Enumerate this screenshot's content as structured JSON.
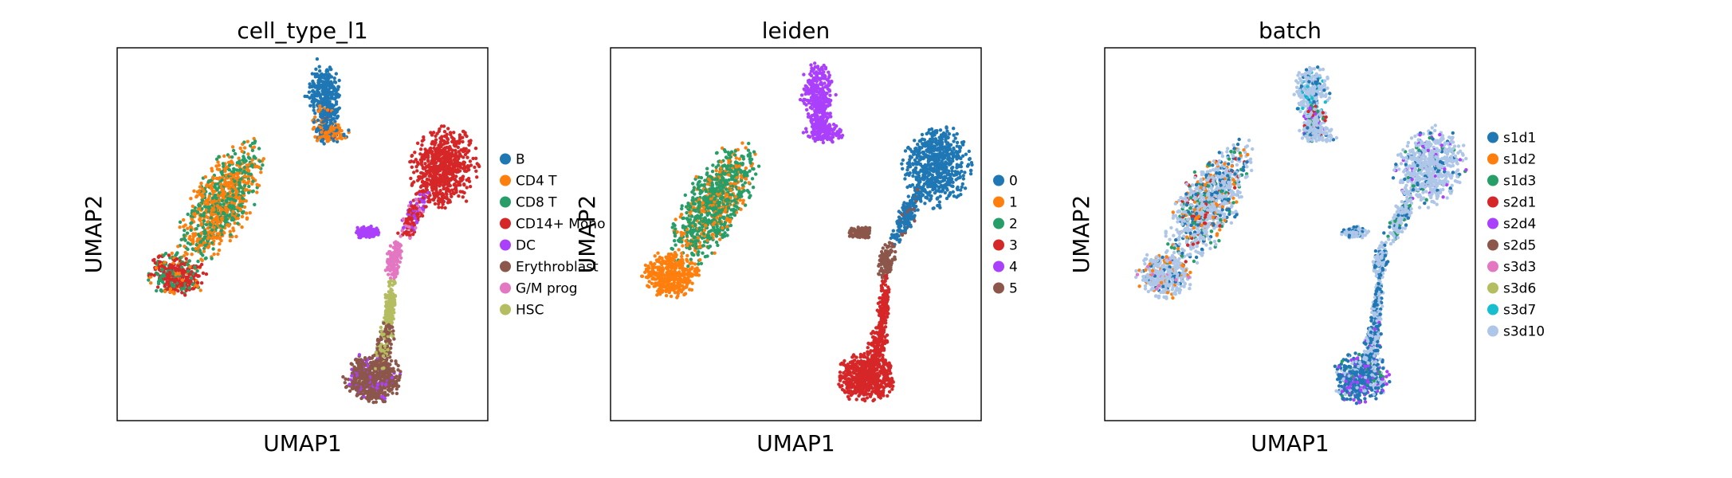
{
  "figure": {
    "background": "#ffffff"
  },
  "chart_data": [
    {
      "type": "scatter",
      "title": "cell_type_l1",
      "xlabel": "UMAP1",
      "ylabel": "UMAP2",
      "grid": false,
      "ticks": false,
      "legend_position": "right",
      "categories": [
        {
          "name": "B",
          "color": "#1f77b4"
        },
        {
          "name": "CD4 T",
          "color": "#ff7f0e"
        },
        {
          "name": "CD8 T",
          "color": "#279e68"
        },
        {
          "name": "CD14+ Mono",
          "color": "#d62728"
        },
        {
          "name": "DC",
          "color": "#aa40fc"
        },
        {
          "name": "Erythroblast",
          "color": "#8c564b"
        },
        {
          "name": "G/M prog",
          "color": "#e377c2"
        },
        {
          "name": "HSC",
          "color": "#b5bd61"
        }
      ]
    },
    {
      "type": "scatter",
      "title": "leiden",
      "xlabel": "UMAP1",
      "ylabel": "UMAP2",
      "grid": false,
      "ticks": false,
      "legend_position": "right",
      "categories": [
        {
          "name": "0",
          "color": "#1f77b4"
        },
        {
          "name": "1",
          "color": "#ff7f0e"
        },
        {
          "name": "2",
          "color": "#279e68"
        },
        {
          "name": "3",
          "color": "#d62728"
        },
        {
          "name": "4",
          "color": "#aa40fc"
        },
        {
          "name": "5",
          "color": "#8c564b"
        }
      ]
    },
    {
      "type": "scatter",
      "title": "batch",
      "xlabel": "UMAP1",
      "ylabel": "UMAP2",
      "grid": false,
      "ticks": false,
      "legend_position": "right",
      "categories": [
        {
          "name": "s1d1",
          "color": "#1f77b4"
        },
        {
          "name": "s1d2",
          "color": "#ff7f0e"
        },
        {
          "name": "s1d3",
          "color": "#279e68"
        },
        {
          "name": "s2d1",
          "color": "#d62728"
        },
        {
          "name": "s2d4",
          "color": "#aa40fc"
        },
        {
          "name": "s2d5",
          "color": "#8c564b"
        },
        {
          "name": "s3d3",
          "color": "#e377c2"
        },
        {
          "name": "s3d6",
          "color": "#b5bd61"
        },
        {
          "name": "s3d7",
          "color": "#17becf"
        },
        {
          "name": "s3d10",
          "color": "#aec7e8"
        }
      ]
    }
  ]
}
